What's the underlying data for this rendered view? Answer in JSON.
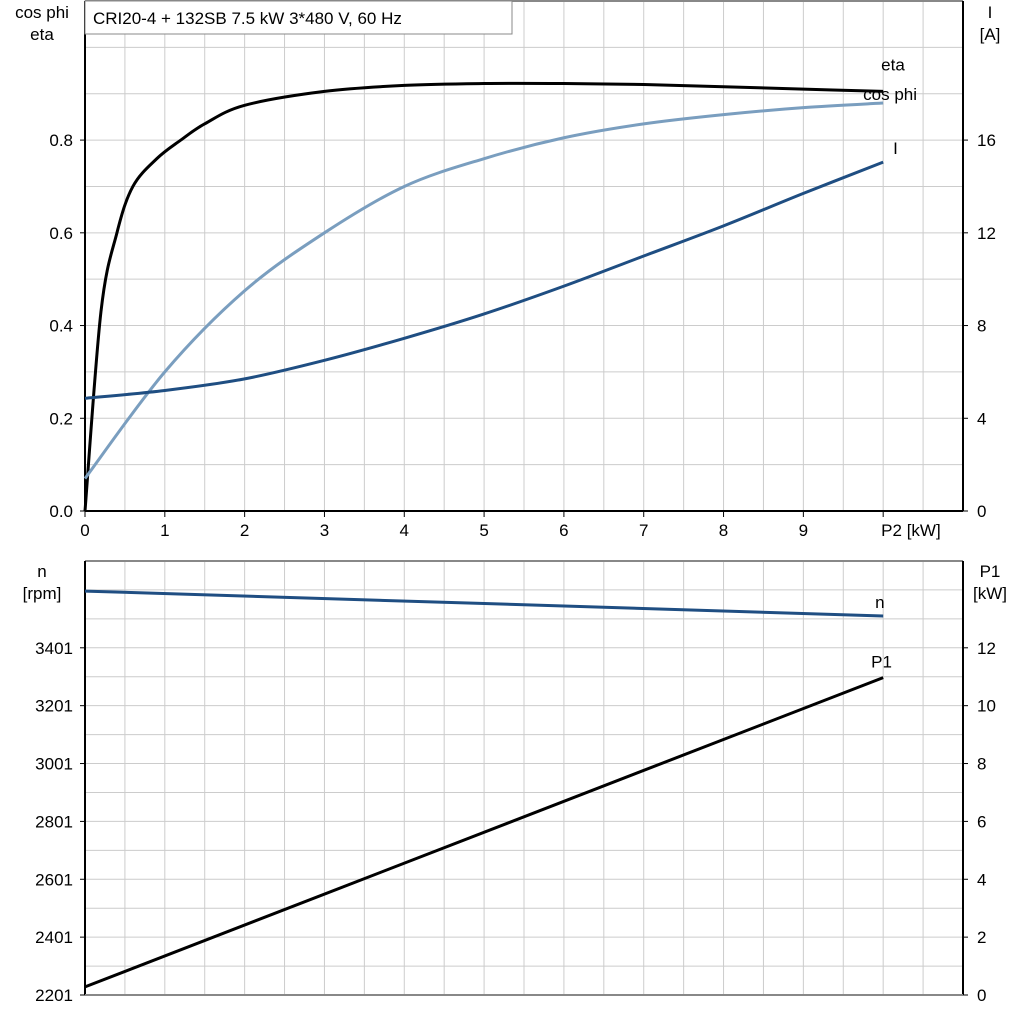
{
  "chart_data": [
    {
      "type": "line",
      "title": "CRI20-4 + 132SB   7.5 kW   3*480 V, 60 Hz",
      "xlabel": "P2 [kW]",
      "ylabel_left": [
        "cos phi",
        "eta"
      ],
      "ylabel_right": [
        "I",
        "[A]"
      ],
      "xlim": [
        0,
        11
      ],
      "ylim_left": [
        0,
        1.1
      ],
      "ylim_right": [
        0,
        22
      ],
      "x_ticks": [
        "0",
        "1",
        "2",
        "3",
        "4",
        "5",
        "6",
        "7",
        "8",
        "9"
      ],
      "y_ticks_left": [
        "0.0",
        "0.2",
        "0.4",
        "0.6",
        "0.8"
      ],
      "y_ticks_right": [
        "0",
        "4",
        "8",
        "12",
        "16"
      ],
      "grid": true,
      "series": [
        {
          "name": "eta",
          "axis": "left",
          "color": "#000000",
          "x": [
            0,
            0.2,
            0.4,
            0.6,
            0.9,
            1.2,
            1.5,
            2,
            3,
            4,
            5,
            6,
            7,
            8,
            9,
            10
          ],
          "y": [
            0,
            0.43,
            0.6,
            0.7,
            0.76,
            0.8,
            0.835,
            0.875,
            0.905,
            0.918,
            0.922,
            0.922,
            0.92,
            0.915,
            0.91,
            0.905
          ]
        },
        {
          "name": "cos phi",
          "axis": "left",
          "color": "#7a9ebf",
          "x": [
            0,
            1,
            2,
            3,
            4,
            5,
            6,
            7,
            8,
            9,
            10
          ],
          "y": [
            0.07,
            0.3,
            0.475,
            0.6,
            0.7,
            0.76,
            0.805,
            0.835,
            0.855,
            0.87,
            0.88
          ]
        },
        {
          "name": "I",
          "axis": "right",
          "color": "#1f4e82",
          "x": [
            0,
            1,
            2,
            3,
            4,
            5,
            6,
            7,
            8,
            9,
            10
          ],
          "y": [
            4.86,
            5.2,
            5.7,
            6.5,
            7.45,
            8.5,
            9.7,
            11.0,
            12.3,
            13.7,
            15.05
          ]
        }
      ]
    },
    {
      "type": "line",
      "xlim": [
        0,
        11
      ],
      "ylabel_left": [
        "n",
        "[rpm]"
      ],
      "ylabel_right": [
        "P1",
        "[kW]"
      ],
      "ylim_left": [
        2201,
        3701
      ],
      "ylim_right": [
        0,
        15
      ],
      "y_ticks_left": [
        "2201",
        "2401",
        "2601",
        "2801",
        "3001",
        "3201",
        "3401"
      ],
      "y_ticks_right": [
        "0",
        "2",
        "4",
        "6",
        "8",
        "10",
        "12"
      ],
      "grid": true,
      "series": [
        {
          "name": "n",
          "axis": "left",
          "color": "#1f4e82",
          "x": [
            0,
            10
          ],
          "y": [
            3597,
            3511
          ]
        },
        {
          "name": "P1",
          "axis": "right",
          "color": "#000000",
          "x": [
            0,
            10
          ],
          "y": [
            0.28,
            10.97
          ]
        }
      ]
    }
  ]
}
